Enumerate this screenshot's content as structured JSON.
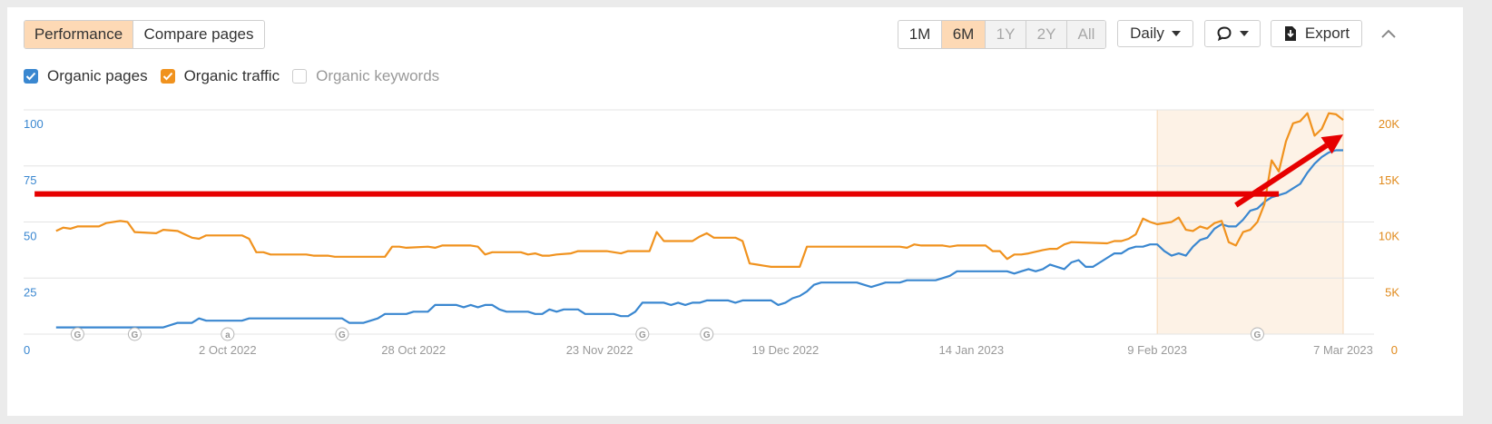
{
  "toolbar": {
    "tabs": [
      {
        "label": "Performance",
        "active": true
      },
      {
        "label": "Compare pages",
        "active": false
      }
    ],
    "ranges": [
      {
        "label": "1M",
        "state": "normal"
      },
      {
        "label": "6M",
        "state": "active"
      },
      {
        "label": "1Y",
        "state": "disabled"
      },
      {
        "label": "2Y",
        "state": "disabled"
      },
      {
        "label": "All",
        "state": "disabled"
      }
    ],
    "interval_label": "Daily",
    "export_label": "Export"
  },
  "legend": [
    {
      "label": "Organic pages",
      "checked": true,
      "color": "#3a87d0"
    },
    {
      "label": "Organic traffic",
      "checked": true,
      "color": "#f0921e"
    },
    {
      "label": "Organic keywords",
      "checked": false,
      "color": "#cccccc"
    }
  ],
  "colors": {
    "pages": "#3a87d0",
    "traffic": "#f0921e",
    "annotation": "#e60000",
    "highlight": "#fdf2e6"
  },
  "chart_data": {
    "type": "line",
    "x_range": [
      "2022-09-06",
      "2023-03-07"
    ],
    "x_ticks": [
      "2 Oct 2022",
      "28 Oct 2022",
      "23 Nov 2022",
      "19 Dec 2022",
      "14 Jan 2023",
      "9 Feb 2023",
      "7 Mar 2023"
    ],
    "y_left": {
      "ticks": [
        0,
        25,
        50,
        75,
        100
      ],
      "tick_labels": [
        "0",
        "25",
        "50",
        "75",
        "100"
      ],
      "range": [
        0,
        100
      ]
    },
    "y_right": {
      "ticks": [
        0,
        5000,
        10000,
        15000,
        20000
      ],
      "tick_labels": [
        "0",
        "5K",
        "10K",
        "15K",
        "20K"
      ],
      "range": [
        0,
        20000
      ]
    },
    "grid": true,
    "highlight_range": [
      "2023-02-09",
      "2023-03-07"
    ],
    "markers": [
      {
        "date": "2022-09-11",
        "label": "G"
      },
      {
        "date": "2022-09-19",
        "label": "G"
      },
      {
        "date": "2022-10-02",
        "label": "a"
      },
      {
        "date": "2022-10-18",
        "label": "G"
      },
      {
        "date": "2022-11-29",
        "label": "G"
      },
      {
        "date": "2022-12-08",
        "label": "G"
      },
      {
        "date": "2023-02-23",
        "label": "G"
      }
    ],
    "series": [
      {
        "axis": "left",
        "points": [
          [
            "2022-09-08",
            3
          ],
          [
            "2022-09-20",
            3
          ],
          [
            "2022-09-23",
            3
          ],
          [
            "2022-09-25",
            5
          ],
          [
            "2022-09-27",
            5
          ],
          [
            "2022-09-28",
            7
          ],
          [
            "2022-09-29",
            6
          ],
          [
            "2022-10-04",
            6
          ],
          [
            "2022-10-05",
            7
          ],
          [
            "2022-10-18",
            7
          ],
          [
            "2022-10-19",
            5
          ],
          [
            "2022-10-21",
            5
          ],
          [
            "2022-10-23",
            7
          ],
          [
            "2022-10-24",
            9
          ],
          [
            "2022-10-27",
            9
          ],
          [
            "2022-10-28",
            10
          ],
          [
            "2022-10-30",
            10
          ],
          [
            "2022-10-31",
            13
          ],
          [
            "2022-11-03",
            13
          ],
          [
            "2022-11-04",
            12
          ],
          [
            "2022-11-05",
            13
          ],
          [
            "2022-11-06",
            12
          ],
          [
            "2022-11-07",
            13
          ],
          [
            "2022-11-08",
            13
          ],
          [
            "2022-11-09",
            11
          ],
          [
            "2022-11-10",
            10
          ],
          [
            "2022-11-13",
            10
          ],
          [
            "2022-11-14",
            9
          ],
          [
            "2022-11-15",
            9
          ],
          [
            "2022-11-16",
            11
          ],
          [
            "2022-11-17",
            10
          ],
          [
            "2022-11-18",
            11
          ],
          [
            "2022-11-20",
            11
          ],
          [
            "2022-11-21",
            9
          ],
          [
            "2022-11-25",
            9
          ],
          [
            "2022-11-26",
            8
          ],
          [
            "2022-11-27",
            8
          ],
          [
            "2022-11-28",
            10
          ],
          [
            "2022-11-29",
            14
          ],
          [
            "2022-12-02",
            14
          ],
          [
            "2022-12-03",
            13
          ],
          [
            "2022-12-04",
            14
          ],
          [
            "2022-12-05",
            13
          ],
          [
            "2022-12-06",
            14
          ],
          [
            "2022-12-07",
            14
          ],
          [
            "2022-12-08",
            15
          ],
          [
            "2022-12-11",
            15
          ],
          [
            "2022-12-12",
            14
          ],
          [
            "2022-12-13",
            15
          ],
          [
            "2022-12-17",
            15
          ],
          [
            "2022-12-18",
            13
          ],
          [
            "2022-12-19",
            14
          ],
          [
            "2022-12-20",
            16
          ],
          [
            "2022-12-21",
            17
          ],
          [
            "2022-12-22",
            19
          ],
          [
            "2022-12-23",
            22
          ],
          [
            "2022-12-24",
            23
          ],
          [
            "2022-12-29",
            23
          ],
          [
            "2022-12-30",
            22
          ],
          [
            "2022-12-31",
            21
          ],
          [
            "2023-01-01",
            22
          ],
          [
            "2023-01-02",
            23
          ],
          [
            "2023-01-04",
            23
          ],
          [
            "2023-01-05",
            24
          ],
          [
            "2023-01-09",
            24
          ],
          [
            "2023-01-10",
            25
          ],
          [
            "2023-01-11",
            26
          ],
          [
            "2023-01-12",
            28
          ],
          [
            "2023-01-19",
            28
          ],
          [
            "2023-01-20",
            27
          ],
          [
            "2023-01-21",
            28
          ],
          [
            "2023-01-22",
            29
          ],
          [
            "2023-01-23",
            28
          ],
          [
            "2023-01-24",
            29
          ],
          [
            "2023-01-25",
            31
          ],
          [
            "2023-01-26",
            30
          ],
          [
            "2023-01-27",
            29
          ],
          [
            "2023-01-28",
            32
          ],
          [
            "2023-01-29",
            33
          ],
          [
            "2023-01-30",
            30
          ],
          [
            "2023-01-31",
            30
          ],
          [
            "2023-02-01",
            32
          ],
          [
            "2023-02-02",
            34
          ],
          [
            "2023-02-03",
            36
          ],
          [
            "2023-02-04",
            36
          ],
          [
            "2023-02-05",
            38
          ],
          [
            "2023-02-06",
            39
          ],
          [
            "2023-02-07",
            39
          ],
          [
            "2023-02-08",
            40
          ],
          [
            "2023-02-09",
            40
          ],
          [
            "2023-02-10",
            37
          ],
          [
            "2023-02-11",
            35
          ],
          [
            "2023-02-12",
            36
          ],
          [
            "2023-02-13",
            35
          ],
          [
            "2023-02-14",
            39
          ],
          [
            "2023-02-15",
            42
          ],
          [
            "2023-02-16",
            43
          ],
          [
            "2023-02-17",
            47
          ],
          [
            "2023-02-18",
            49
          ],
          [
            "2023-02-19",
            48
          ],
          [
            "2023-02-20",
            48
          ],
          [
            "2023-02-21",
            51
          ],
          [
            "2023-02-22",
            55
          ],
          [
            "2023-02-23",
            56
          ],
          [
            "2023-02-24",
            59
          ],
          [
            "2023-02-25",
            61
          ],
          [
            "2023-02-26",
            62
          ],
          [
            "2023-02-27",
            63
          ],
          [
            "2023-02-28",
            65
          ],
          [
            "2023-03-01",
            67
          ],
          [
            "2023-03-02",
            72
          ],
          [
            "2023-03-03",
            76
          ],
          [
            "2023-03-04",
            79
          ],
          [
            "2023-03-05",
            81
          ],
          [
            "2023-03-06",
            82
          ],
          [
            "2023-03-07",
            82
          ]
        ]
      },
      {
        "axis": "right",
        "points": [
          [
            "2022-09-08",
            9200
          ],
          [
            "2022-09-09",
            9500
          ],
          [
            "2022-09-10",
            9400
          ],
          [
            "2022-09-11",
            9600
          ],
          [
            "2022-09-14",
            9600
          ],
          [
            "2022-09-15",
            9900
          ],
          [
            "2022-09-17",
            10100
          ],
          [
            "2022-09-18",
            10000
          ],
          [
            "2022-09-19",
            9100
          ],
          [
            "2022-09-22",
            9000
          ],
          [
            "2022-09-23",
            9300
          ],
          [
            "2022-09-25",
            9200
          ],
          [
            "2022-09-26",
            8900
          ],
          [
            "2022-09-27",
            8600
          ],
          [
            "2022-09-28",
            8500
          ],
          [
            "2022-09-29",
            8800
          ],
          [
            "2022-10-04",
            8800
          ],
          [
            "2022-10-05",
            8500
          ],
          [
            "2022-10-06",
            7300
          ],
          [
            "2022-10-07",
            7300
          ],
          [
            "2022-10-08",
            7100
          ],
          [
            "2022-10-13",
            7100
          ],
          [
            "2022-10-14",
            7000
          ],
          [
            "2022-10-16",
            7000
          ],
          [
            "2022-10-17",
            6900
          ],
          [
            "2022-10-24",
            6900
          ],
          [
            "2022-10-25",
            7800
          ],
          [
            "2022-10-26",
            7800
          ],
          [
            "2022-10-27",
            7700
          ],
          [
            "2022-10-30",
            7800
          ],
          [
            "2022-10-31",
            7700
          ],
          [
            "2022-11-01",
            7900
          ],
          [
            "2022-11-05",
            7900
          ],
          [
            "2022-11-06",
            7800
          ],
          [
            "2022-11-07",
            7100
          ],
          [
            "2022-11-08",
            7300
          ],
          [
            "2022-11-12",
            7300
          ],
          [
            "2022-11-13",
            7100
          ],
          [
            "2022-11-14",
            7200
          ],
          [
            "2022-11-15",
            7000
          ],
          [
            "2022-11-16",
            7000
          ],
          [
            "2022-11-17",
            7100
          ],
          [
            "2022-11-19",
            7200
          ],
          [
            "2022-11-20",
            7400
          ],
          [
            "2022-11-24",
            7400
          ],
          [
            "2022-11-25",
            7300
          ],
          [
            "2022-11-26",
            7200
          ],
          [
            "2022-11-27",
            7400
          ],
          [
            "2022-11-30",
            7400
          ],
          [
            "2022-12-01",
            9100
          ],
          [
            "2022-12-02",
            8300
          ],
          [
            "2022-12-06",
            8300
          ],
          [
            "2022-12-07",
            8700
          ],
          [
            "2022-12-08",
            9000
          ],
          [
            "2022-12-09",
            8600
          ],
          [
            "2022-12-12",
            8600
          ],
          [
            "2022-12-13",
            8300
          ],
          [
            "2022-12-14",
            6300
          ],
          [
            "2022-12-15",
            6200
          ],
          [
            "2022-12-16",
            6100
          ],
          [
            "2022-12-17",
            6000
          ],
          [
            "2022-12-21",
            6000
          ],
          [
            "2022-12-22",
            7800
          ],
          [
            "2022-12-23",
            7800
          ],
          [
            "2022-12-27",
            7800
          ],
          [
            "2023-01-01",
            7800
          ],
          [
            "2023-01-04",
            7800
          ],
          [
            "2023-01-05",
            7700
          ],
          [
            "2023-01-06",
            8000
          ],
          [
            "2023-01-07",
            7900
          ],
          [
            "2023-01-08",
            7900
          ],
          [
            "2023-01-10",
            7900
          ],
          [
            "2023-01-11",
            7800
          ],
          [
            "2023-01-12",
            7900
          ],
          [
            "2023-01-16",
            7900
          ],
          [
            "2023-01-17",
            7400
          ],
          [
            "2023-01-18",
            7400
          ],
          [
            "2023-01-19",
            6700
          ],
          [
            "2023-01-20",
            7100
          ],
          [
            "2023-01-21",
            7100
          ],
          [
            "2023-01-22",
            7200
          ],
          [
            "2023-01-24",
            7500
          ],
          [
            "2023-01-25",
            7600
          ],
          [
            "2023-01-26",
            7600
          ],
          [
            "2023-01-27",
            8000
          ],
          [
            "2023-01-28",
            8200
          ],
          [
            "2023-02-02",
            8100
          ],
          [
            "2023-02-03",
            8300
          ],
          [
            "2023-02-04",
            8300
          ],
          [
            "2023-02-05",
            8500
          ],
          [
            "2023-02-06",
            8900
          ],
          [
            "2023-02-07",
            10300
          ],
          [
            "2023-02-08",
            10000
          ],
          [
            "2023-02-09",
            9800
          ],
          [
            "2023-02-11",
            10000
          ],
          [
            "2023-02-12",
            10400
          ],
          [
            "2023-02-13",
            9300
          ],
          [
            "2023-02-14",
            9200
          ],
          [
            "2023-02-15",
            9600
          ],
          [
            "2023-02-16",
            9400
          ],
          [
            "2023-02-17",
            9900
          ],
          [
            "2023-02-18",
            10100
          ],
          [
            "2023-02-19",
            8200
          ],
          [
            "2023-02-20",
            7900
          ],
          [
            "2023-02-21",
            9100
          ],
          [
            "2023-02-22",
            9300
          ],
          [
            "2023-02-23",
            10000
          ],
          [
            "2023-02-24",
            11600
          ],
          [
            "2023-02-25",
            15500
          ],
          [
            "2023-02-26",
            14500
          ],
          [
            "2023-02-27",
            17200
          ],
          [
            "2023-02-28",
            18800
          ],
          [
            "2023-03-01",
            19000
          ],
          [
            "2023-03-02",
            19700
          ],
          [
            "2023-03-03",
            17700
          ],
          [
            "2023-03-04",
            18300
          ],
          [
            "2023-03-05",
            19700
          ],
          [
            "2023-03-06",
            19600
          ],
          [
            "2023-03-07",
            19100
          ]
        ]
      }
    ],
    "annotations": [
      {
        "type": "line",
        "from": [
          "2022-09-05",
          12500
        ],
        "to": [
          "2023-02-26",
          12500
        ],
        "axis": "right"
      },
      {
        "type": "arrow",
        "from": [
          "2023-02-20",
          11500
        ],
        "to": [
          "2023-03-07",
          17800
        ],
        "axis": "right"
      }
    ]
  }
}
